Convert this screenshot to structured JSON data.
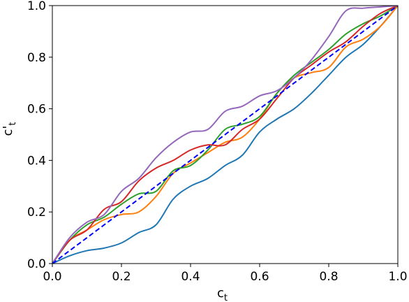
{
  "chart_data": {
    "type": "line",
    "xlabel": "c",
    "xlabel_sub": "t",
    "ylabel": "c'",
    "ylabel_sub": "t",
    "xlim": [
      0.0,
      1.0
    ],
    "ylim": [
      0.0,
      1.0
    ],
    "xticks": [
      "0.0",
      "0.2",
      "0.4",
      "0.6",
      "0.8",
      "1.0"
    ],
    "yticks": [
      "0.0",
      "0.2",
      "0.4",
      "0.6",
      "0.8",
      "1.0"
    ],
    "grid": false,
    "series": [
      {
        "color": "#1f77b4",
        "style": "solid",
        "x": [
          0.0,
          0.05,
          0.1,
          0.15,
          0.2,
          0.25,
          0.3,
          0.35,
          0.4,
          0.45,
          0.5,
          0.55,
          0.6,
          0.65,
          0.7,
          0.75,
          0.8,
          0.85,
          0.9,
          0.95,
          1.0
        ],
        "y": [
          0.0,
          0.03,
          0.05,
          0.06,
          0.08,
          0.12,
          0.15,
          0.25,
          0.3,
          0.33,
          0.38,
          0.42,
          0.51,
          0.56,
          0.6,
          0.66,
          0.73,
          0.8,
          0.85,
          0.92,
          1.0
        ]
      },
      {
        "color": "#ff7f0e",
        "style": "solid",
        "x": [
          0.0,
          0.05,
          0.1,
          0.15,
          0.2,
          0.25,
          0.3,
          0.35,
          0.4,
          0.45,
          0.5,
          0.55,
          0.6,
          0.65,
          0.7,
          0.75,
          0.8,
          0.85,
          0.9,
          0.95,
          1.0
        ],
        "y": [
          0.0,
          0.09,
          0.13,
          0.17,
          0.19,
          0.2,
          0.26,
          0.35,
          0.39,
          0.43,
          0.47,
          0.49,
          0.56,
          0.66,
          0.72,
          0.74,
          0.76,
          0.84,
          0.87,
          0.92,
          1.0
        ]
      },
      {
        "color": "#2ca02c",
        "style": "solid",
        "x": [
          0.0,
          0.05,
          0.1,
          0.15,
          0.2,
          0.25,
          0.3,
          0.35,
          0.4,
          0.45,
          0.5,
          0.55,
          0.6,
          0.65,
          0.7,
          0.75,
          0.8,
          0.85,
          0.9,
          0.95,
          1.0
        ],
        "y": [
          0.0,
          0.09,
          0.15,
          0.18,
          0.23,
          0.27,
          0.28,
          0.36,
          0.38,
          0.44,
          0.52,
          0.54,
          0.57,
          0.66,
          0.73,
          0.78,
          0.83,
          0.89,
          0.93,
          0.96,
          1.0
        ]
      },
      {
        "color": "#d62728",
        "style": "solid",
        "x": [
          0.0,
          0.05,
          0.1,
          0.15,
          0.2,
          0.25,
          0.3,
          0.35,
          0.4,
          0.45,
          0.5,
          0.55,
          0.6,
          0.65,
          0.7,
          0.75,
          0.8,
          0.85,
          0.9,
          0.95,
          1.0
        ],
        "y": [
          0.0,
          0.09,
          0.13,
          0.21,
          0.24,
          0.32,
          0.37,
          0.4,
          0.44,
          0.46,
          0.46,
          0.52,
          0.56,
          0.64,
          0.72,
          0.77,
          0.82,
          0.86,
          0.92,
          0.97,
          1.0
        ]
      },
      {
        "color": "#9467bd",
        "style": "solid",
        "x": [
          0.0,
          0.05,
          0.1,
          0.15,
          0.2,
          0.25,
          0.3,
          0.35,
          0.4,
          0.45,
          0.5,
          0.55,
          0.6,
          0.65,
          0.7,
          0.75,
          0.8,
          0.85,
          0.9,
          0.95,
          1.0
        ],
        "y": [
          0.0,
          0.1,
          0.16,
          0.19,
          0.28,
          0.33,
          0.41,
          0.47,
          0.51,
          0.52,
          0.59,
          0.61,
          0.65,
          0.67,
          0.72,
          0.79,
          0.88,
          0.98,
          0.99,
          0.995,
          1.0
        ]
      },
      {
        "color": "#0000ff",
        "style": "dashed",
        "x": [
          0.0,
          1.0
        ],
        "y": [
          0.0,
          1.0
        ]
      }
    ]
  }
}
